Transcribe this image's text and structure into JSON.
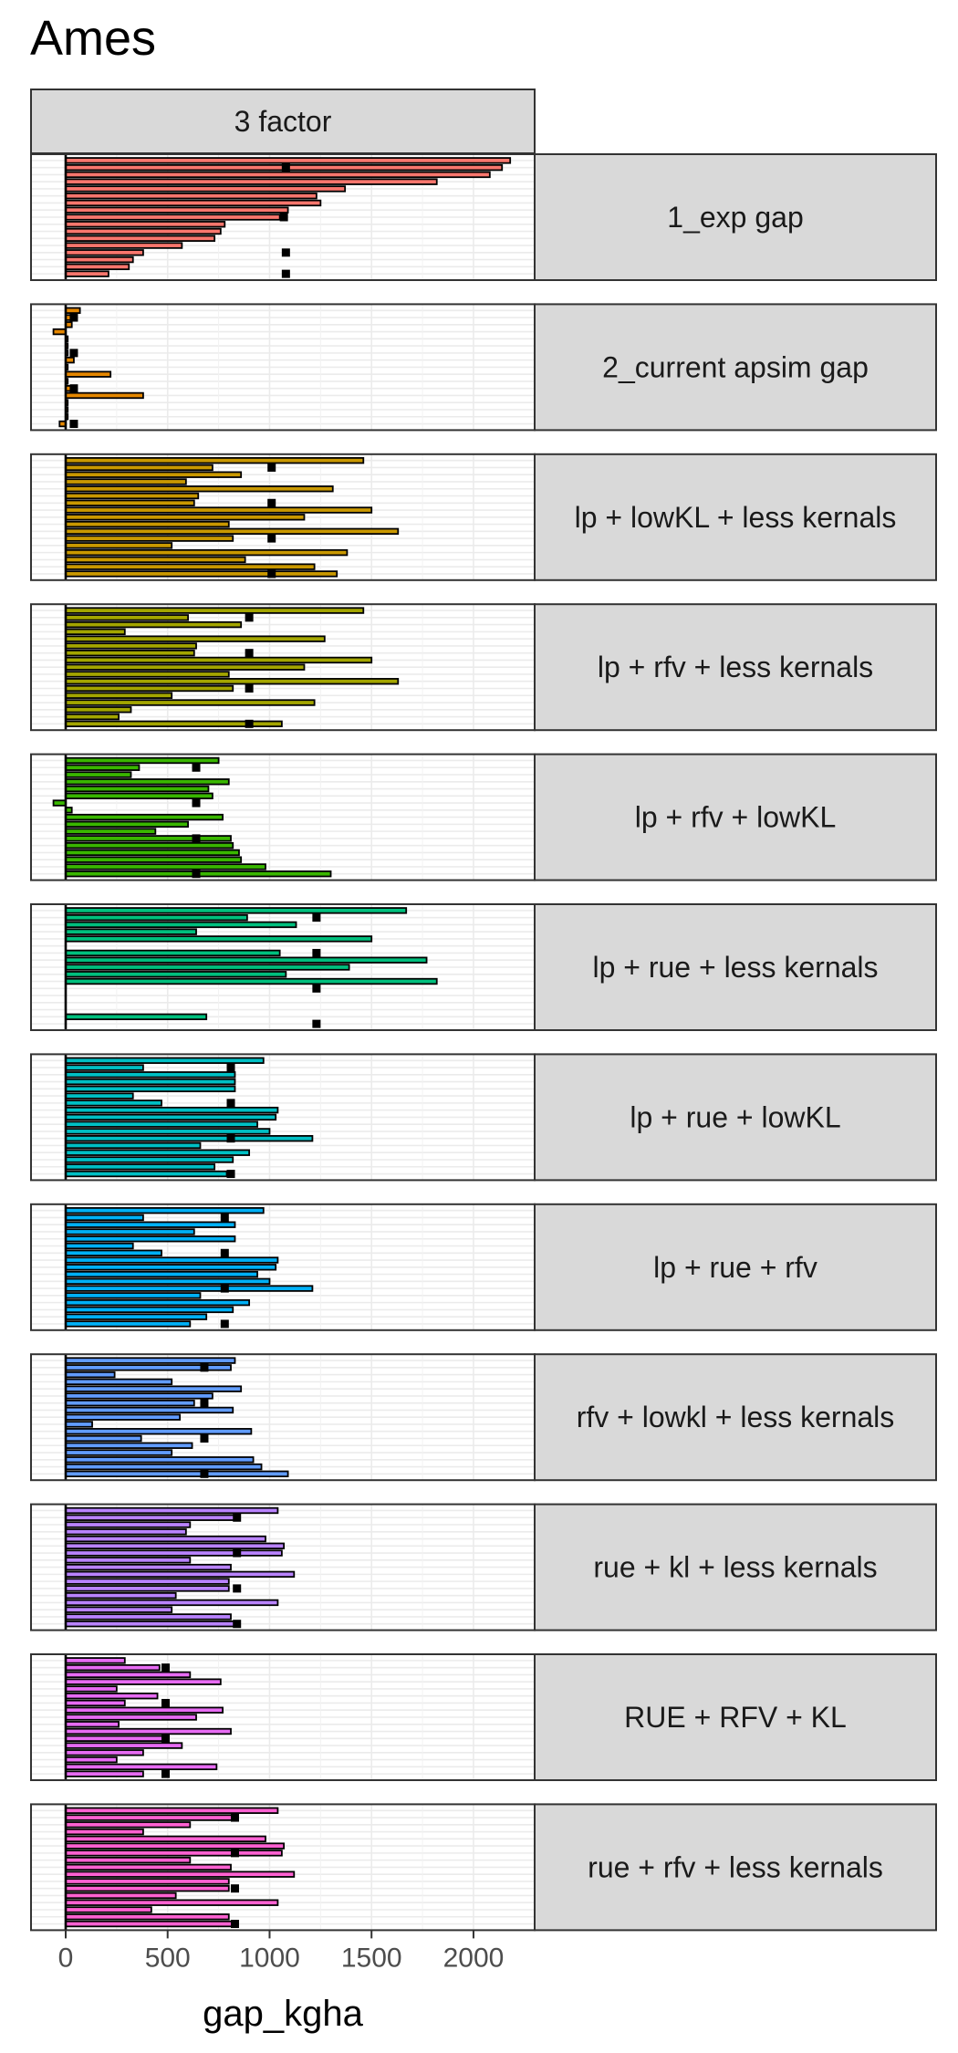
{
  "chart_data": {
    "type": "bar",
    "orientation": "horizontal",
    "title": "Ames",
    "column_strip": "3 factor",
    "xlabel": "gap_kgha",
    "ylabel": "",
    "xlim": [
      -170,
      2300
    ],
    "x_ticks": [
      0,
      500,
      1000,
      1500,
      2000
    ],
    "x_tick_labels": [
      "0",
      "500",
      "1000",
      "1500",
      "2000"
    ],
    "grid": true,
    "legend": "none",
    "bar_outline": "#000000",
    "panels": [
      {
        "label": "1_exp gap",
        "color": "#F8766D",
        "values": [
          2180,
          2140,
          2080,
          1820,
          1370,
          1230,
          1250,
          1090,
          1050,
          780,
          760,
          730,
          570,
          380,
          330,
          310,
          210
        ],
        "points": [
          {
            "bar": 1,
            "value": 1080
          },
          {
            "bar": 8,
            "value": 1070
          },
          {
            "bar": 13,
            "value": 1080
          },
          {
            "bar": 16,
            "value": 1080
          }
        ]
      },
      {
        "label": "2_current apsim gap",
        "color": "#E58700",
        "values": [
          70,
          50,
          30,
          -60,
          10,
          10,
          10,
          40,
          10,
          220,
          10,
          50,
          380,
          10,
          10,
          10,
          -30
        ],
        "points": [
          {
            "bar": 1,
            "value": 40
          },
          {
            "bar": 6,
            "value": 40
          },
          {
            "bar": 11,
            "value": 40
          },
          {
            "bar": 16,
            "value": 40
          }
        ]
      },
      {
        "label": "lp + lowKL + less kernals",
        "color": "#C99800",
        "values": [
          1460,
          720,
          860,
          590,
          1310,
          650,
          630,
          1500,
          1170,
          800,
          1630,
          820,
          520,
          1380,
          880,
          1220,
          1330
        ],
        "points": [
          {
            "bar": 1,
            "value": 1010
          },
          {
            "bar": 6,
            "value": 1010
          },
          {
            "bar": 11,
            "value": 1010
          },
          {
            "bar": 16,
            "value": 1010
          }
        ]
      },
      {
        "label": "lp + rfv + less kernals",
        "color": "#A3A500",
        "values": [
          1460,
          600,
          860,
          290,
          1270,
          640,
          630,
          1500,
          1170,
          800,
          1630,
          820,
          520,
          1220,
          320,
          260,
          1060
        ],
        "points": [
          {
            "bar": 1,
            "value": 900
          },
          {
            "bar": 6,
            "value": 900
          },
          {
            "bar": 11,
            "value": 900
          },
          {
            "bar": 16,
            "value": 900
          }
        ]
      },
      {
        "label": "lp + rfv + lowKL",
        "color": "#39B600",
        "values": [
          750,
          360,
          320,
          800,
          700,
          720,
          -60,
          30,
          770,
          600,
          440,
          810,
          820,
          850,
          860,
          980,
          1300
        ],
        "points": [
          {
            "bar": 1,
            "value": 640
          },
          {
            "bar": 6,
            "value": 640
          },
          {
            "bar": 11,
            "value": 640
          },
          {
            "bar": 16,
            "value": 640
          }
        ]
      },
      {
        "label": "lp + rue + less kernals",
        "color": "#00BF7D",
        "values": [
          1670,
          890,
          1130,
          640,
          1500,
          0,
          1050,
          1770,
          1390,
          1080,
          1820,
          0,
          0,
          0,
          0,
          690,
          0
        ],
        "points": [
          {
            "bar": 1,
            "value": 1230
          },
          {
            "bar": 6,
            "value": 1230
          },
          {
            "bar": 11,
            "value": 1230
          },
          {
            "bar": 16,
            "value": 1230
          }
        ]
      },
      {
        "label": "lp + rue + lowKL",
        "color": "#00BFC4",
        "values": [
          970,
          380,
          830,
          830,
          830,
          330,
          470,
          1040,
          1030,
          940,
          1000,
          1210,
          660,
          900,
          820,
          730,
          790
        ],
        "points": [
          {
            "bar": 1,
            "value": 810
          },
          {
            "bar": 6,
            "value": 810
          },
          {
            "bar": 11,
            "value": 810
          },
          {
            "bar": 16,
            "value": 810
          }
        ]
      },
      {
        "label": "lp + rue + rfv",
        "color": "#00B0F6",
        "values": [
          970,
          380,
          830,
          630,
          830,
          330,
          470,
          1040,
          1030,
          940,
          1000,
          1210,
          660,
          900,
          820,
          690,
          610
        ],
        "points": [
          {
            "bar": 1,
            "value": 780
          },
          {
            "bar": 6,
            "value": 780
          },
          {
            "bar": 11,
            "value": 780
          },
          {
            "bar": 16,
            "value": 780
          }
        ]
      },
      {
        "label": "rfv + lowkl + less kernals",
        "color": "#619CFF",
        "values": [
          830,
          810,
          240,
          520,
          860,
          720,
          630,
          820,
          560,
          130,
          910,
          370,
          620,
          520,
          920,
          960,
          1090
        ],
        "points": [
          {
            "bar": 1,
            "value": 680
          },
          {
            "bar": 6,
            "value": 680
          },
          {
            "bar": 11,
            "value": 680
          },
          {
            "bar": 16,
            "value": 680
          }
        ]
      },
      {
        "label": "rue + kl + less kernals",
        "color": "#B983FF",
        "values": [
          1040,
          840,
          610,
          590,
          980,
          1070,
          1060,
          610,
          810,
          1120,
          800,
          800,
          540,
          1040,
          520,
          810,
          830
        ],
        "points": [
          {
            "bar": 1,
            "value": 840
          },
          {
            "bar": 6,
            "value": 840
          },
          {
            "bar": 11,
            "value": 840
          },
          {
            "bar": 16,
            "value": 840
          }
        ]
      },
      {
        "label": "RUE + RFV + KL",
        "color": "#E76BF3",
        "values": [
          290,
          460,
          610,
          760,
          250,
          450,
          290,
          770,
          640,
          260,
          810,
          480,
          570,
          380,
          250,
          740,
          380
        ],
        "points": [
          {
            "bar": 1,
            "value": 490
          },
          {
            "bar": 6,
            "value": 490
          },
          {
            "bar": 11,
            "value": 490
          },
          {
            "bar": 16,
            "value": 490
          }
        ]
      },
      {
        "label": "rue + rfv + less kernals",
        "color": "#FD61D1",
        "values": [
          1040,
          840,
          610,
          380,
          980,
          1070,
          1060,
          610,
          810,
          1120,
          800,
          800,
          540,
          1040,
          420,
          800,
          830
        ],
        "points": [
          {
            "bar": 1,
            "value": 830
          },
          {
            "bar": 6,
            "value": 830
          },
          {
            "bar": 11,
            "value": 830
          },
          {
            "bar": 16,
            "value": 830
          }
        ]
      }
    ]
  }
}
